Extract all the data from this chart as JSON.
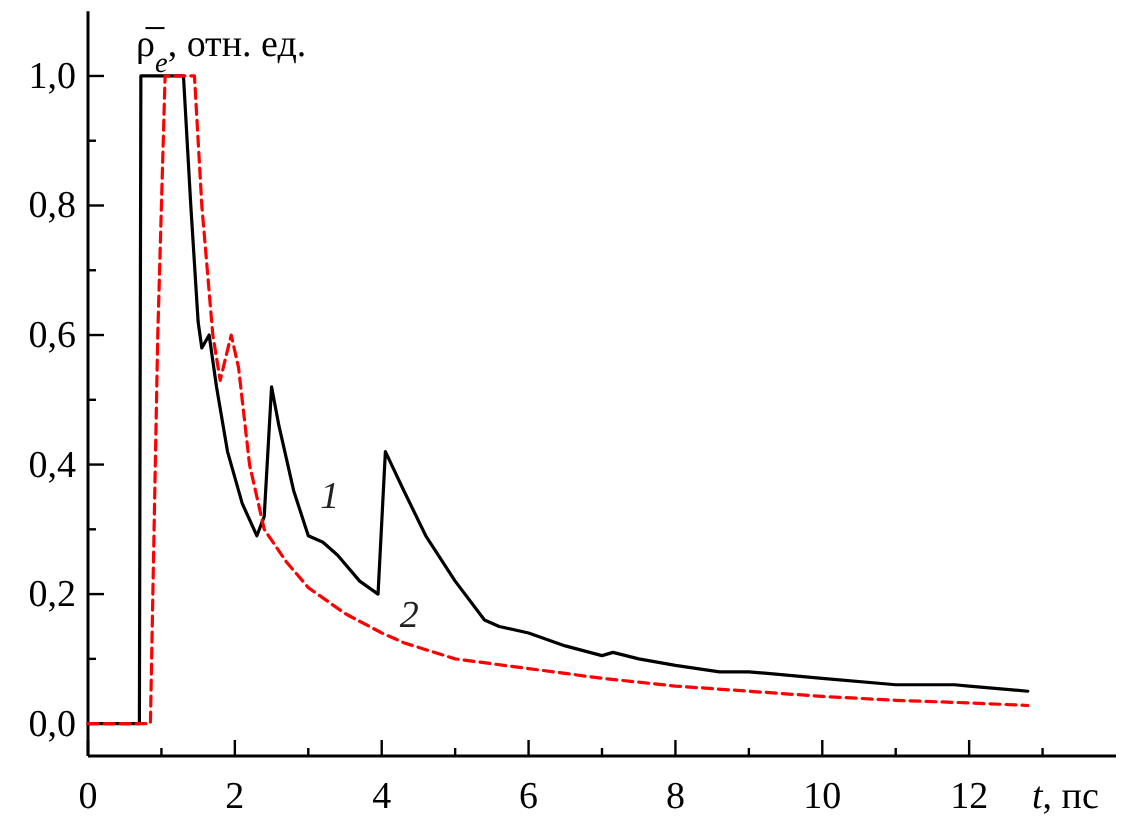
{
  "chart_data": {
    "type": "line",
    "ylabel": "ρ̅$_{e}$, отн. ед.",
    "xlabel": "t, пс",
    "xlim": [
      0,
      14
    ],
    "ylim": [
      -0.05,
      1.1
    ],
    "xticks": [
      0,
      {
        "value": 1,
        "label": null
      },
      2,
      {
        "value": 3,
        "label": null
      },
      4,
      {
        "value": 5,
        "label": null
      },
      6,
      {
        "value": 7,
        "label": null
      },
      8,
      {
        "value": 9,
        "label": null
      },
      10,
      {
        "value": 11,
        "label": null
      },
      12,
      {
        "value": 13,
        "label": null
      }
    ],
    "yticks": [
      {
        "value": 0,
        "label": "0,0"
      },
      {
        "value": 0.1,
        "label": null
      },
      {
        "value": 0.2,
        "label": "0,2"
      },
      {
        "value": 0.3,
        "label": null
      },
      {
        "value": 0.4,
        "label": "0,4"
      },
      {
        "value": 0.5,
        "label": null
      },
      {
        "value": 0.6,
        "label": "0,6"
      },
      {
        "value": 0.7,
        "label": null
      },
      {
        "value": 0.8,
        "label": "0,8"
      },
      {
        "value": 0.9,
        "label": null
      },
      {
        "value": 1.0,
        "label": "1,0"
      }
    ],
    "series": [
      {
        "name": "1",
        "color": "#000000",
        "line_style": "solid",
        "x": [
          0,
          0.7,
          0.72,
          1.3,
          1.4,
          1.5,
          1.55,
          1.65,
          1.75,
          1.9,
          2.1,
          2.3,
          2.4,
          2.5,
          2.6,
          2.8,
          3.0,
          3.2,
          3.4,
          3.7,
          3.95,
          4.05,
          4.3,
          4.6,
          5.0,
          5.4,
          5.6,
          6.0,
          6.5,
          7.0,
          7.15,
          7.5,
          8.0,
          8.6,
          9.0,
          10.0,
          11.0,
          11.8,
          12.0,
          12.8
        ],
        "values": [
          0,
          0,
          1.0,
          1.0,
          0.8,
          0.62,
          0.58,
          0.6,
          0.52,
          0.42,
          0.34,
          0.29,
          0.32,
          0.52,
          0.46,
          0.36,
          0.29,
          0.28,
          0.26,
          0.22,
          0.2,
          0.42,
          0.36,
          0.29,
          0.22,
          0.16,
          0.15,
          0.14,
          0.12,
          0.105,
          0.11,
          0.1,
          0.09,
          0.08,
          0.08,
          0.07,
          0.06,
          0.06,
          0.058,
          0.05
        ]
      },
      {
        "name": "2",
        "color": "#ff0000",
        "line_style": "dashed",
        "x": [
          0,
          0.85,
          0.95,
          1.05,
          1.45,
          1.55,
          1.7,
          1.8,
          1.95,
          2.05,
          2.2,
          2.4,
          2.7,
          3.0,
          3.5,
          4.0,
          4.3,
          5.0,
          6.0,
          7.0,
          8.0,
          9.0,
          10.0,
          11.0,
          12.0,
          12.8
        ],
        "values": [
          0,
          0,
          0.6,
          1.0,
          1.0,
          0.8,
          0.6,
          0.53,
          0.6,
          0.55,
          0.4,
          0.3,
          0.25,
          0.21,
          0.17,
          0.14,
          0.125,
          0.1,
          0.085,
          0.07,
          0.058,
          0.05,
          0.042,
          0.036,
          0.032,
          0.028
        ]
      }
    ]
  }
}
